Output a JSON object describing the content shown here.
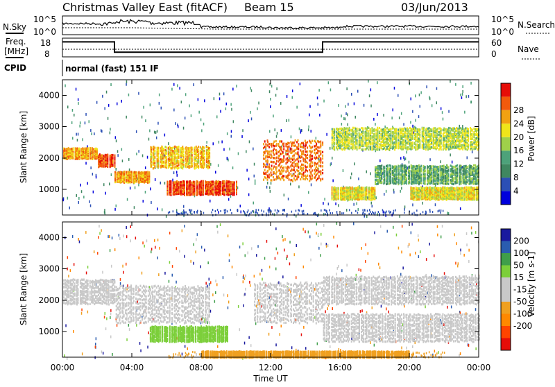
{
  "header": {
    "title": "Christmas Valley East (fitACF)",
    "beam": "Beam 15",
    "date": "03/Jun/2013"
  },
  "strip1": {
    "left_label": "N.Sky",
    "right_label": "N.Search",
    "left_ticks": [
      "10^5",
      "10^0"
    ],
    "right_ticks": [
      "10^5",
      "10^0"
    ]
  },
  "strip2": {
    "left_label_1": "Freq.",
    "left_label_2": "[MHz]",
    "left_ticks": [
      "18",
      "8"
    ],
    "right_label": "Nave",
    "right_ticks": [
      "60",
      "0"
    ],
    "freq_segments": [
      {
        "start": 0,
        "end": 3,
        "freq": 16
      },
      {
        "start": 3,
        "end": 15,
        "freq": 10.5
      },
      {
        "start": 15,
        "end": 24,
        "freq": 16
      }
    ]
  },
  "cpid": {
    "label": "CPID",
    "text": "normal (fast) 151 IF"
  },
  "axes": {
    "xlabel": "Time UT",
    "x_ticks": [
      "00:00",
      "04:00",
      "08:00",
      "12:00",
      "16:00",
      "20:00",
      "00:00"
    ],
    "ylabel": "Slant Range [km]",
    "y_ticks": [
      "1000",
      "2000",
      "3000",
      "4000"
    ]
  },
  "colors": {
    "power": [
      "#0000dd",
      "#2b4fb5",
      "#3f8760",
      "#4da27a",
      "#9fd04a",
      "#f0e51a",
      "#f2a112",
      "#f25a0c",
      "#e60d08"
    ],
    "velocity": [
      "#e60d08",
      "#ff4400",
      "#ff8800",
      "#f0a020",
      "#c8c8c8",
      "#c8c8c8",
      "#7ccf3a",
      "#3f9e4a",
      "#2a5cb0",
      "#1a1a9e"
    ]
  },
  "chart_data": [
    {
      "type": "heatmap",
      "title": "Power [dB]",
      "xlabel": "Time UT",
      "ylabel": "Slant Range [km]",
      "xlim": [
        0,
        24
      ],
      "ylim": [
        180,
        4500
      ],
      "colorbar": {
        "label": "Power [dB]",
        "ticks": [
          "4",
          "8",
          "12",
          "16",
          "20",
          "24",
          "28"
        ],
        "range": [
          0,
          30
        ]
      },
      "bands": [
        {
          "t0": 0.0,
          "t1": 2.0,
          "r0": 2000,
          "r1": 2350,
          "level": 22
        },
        {
          "t0": 2.0,
          "t1": 3.0,
          "r0": 1750,
          "r1": 2150,
          "level": 26
        },
        {
          "t0": 3.0,
          "t1": 5.0,
          "r0": 1250,
          "r1": 1600,
          "level": 22
        },
        {
          "t0": 5.0,
          "t1": 8.5,
          "r0": 1700,
          "r1": 2400,
          "level": 20
        },
        {
          "t0": 6.0,
          "t1": 10.0,
          "r0": 850,
          "r1": 1300,
          "level": 26
        },
        {
          "t0": 11.5,
          "t1": 15.0,
          "r0": 1300,
          "r1": 2600,
          "level": 24
        },
        {
          "t0": 15.5,
          "t1": 18.0,
          "r0": 700,
          "r1": 1100,
          "level": 18
        },
        {
          "t0": 15.5,
          "t1": 24.0,
          "r0": 2300,
          "r1": 3000,
          "level": 16
        },
        {
          "t0": 18.0,
          "t1": 24.0,
          "r0": 1200,
          "r1": 1800,
          "level": 12
        },
        {
          "t0": 20.0,
          "t1": 24.0,
          "r0": 700,
          "r1": 1100,
          "level": 18
        }
      ]
    },
    {
      "type": "heatmap",
      "title": "Velocity [m s-1]",
      "xlabel": "Time UT",
      "ylabel": "Slant Range [km]",
      "xlim": [
        0,
        24
      ],
      "ylim": [
        180,
        4500
      ],
      "colorbar": {
        "label": "Velocity [m s-1]",
        "ticks": [
          "200",
          "100",
          "50",
          "15",
          "-15",
          "-50",
          "-100",
          "-200"
        ],
        "range": [
          -250,
          250
        ]
      },
      "bands": [
        {
          "t0": 0.0,
          "t1": 3.0,
          "r0": 1900,
          "r1": 2700,
          "level": 0
        },
        {
          "t0": 3.0,
          "t1": 8.5,
          "r0": 1300,
          "r1": 2500,
          "level": 0
        },
        {
          "t0": 5.0,
          "t1": 9.5,
          "r0": 700,
          "r1": 1200,
          "level": 30
        },
        {
          "t0": 11.0,
          "t1": 15.0,
          "r0": 1300,
          "r1": 2600,
          "level": 0
        },
        {
          "t0": 15.0,
          "t1": 24.0,
          "r0": 1900,
          "r1": 2800,
          "level": 0
        },
        {
          "t0": 15.0,
          "t1": 24.0,
          "r0": 700,
          "r1": 1600,
          "level": 0
        },
        {
          "t0": 8.0,
          "t1": 20.0,
          "r0": 200,
          "r1": 400,
          "level": -40
        }
      ]
    }
  ]
}
